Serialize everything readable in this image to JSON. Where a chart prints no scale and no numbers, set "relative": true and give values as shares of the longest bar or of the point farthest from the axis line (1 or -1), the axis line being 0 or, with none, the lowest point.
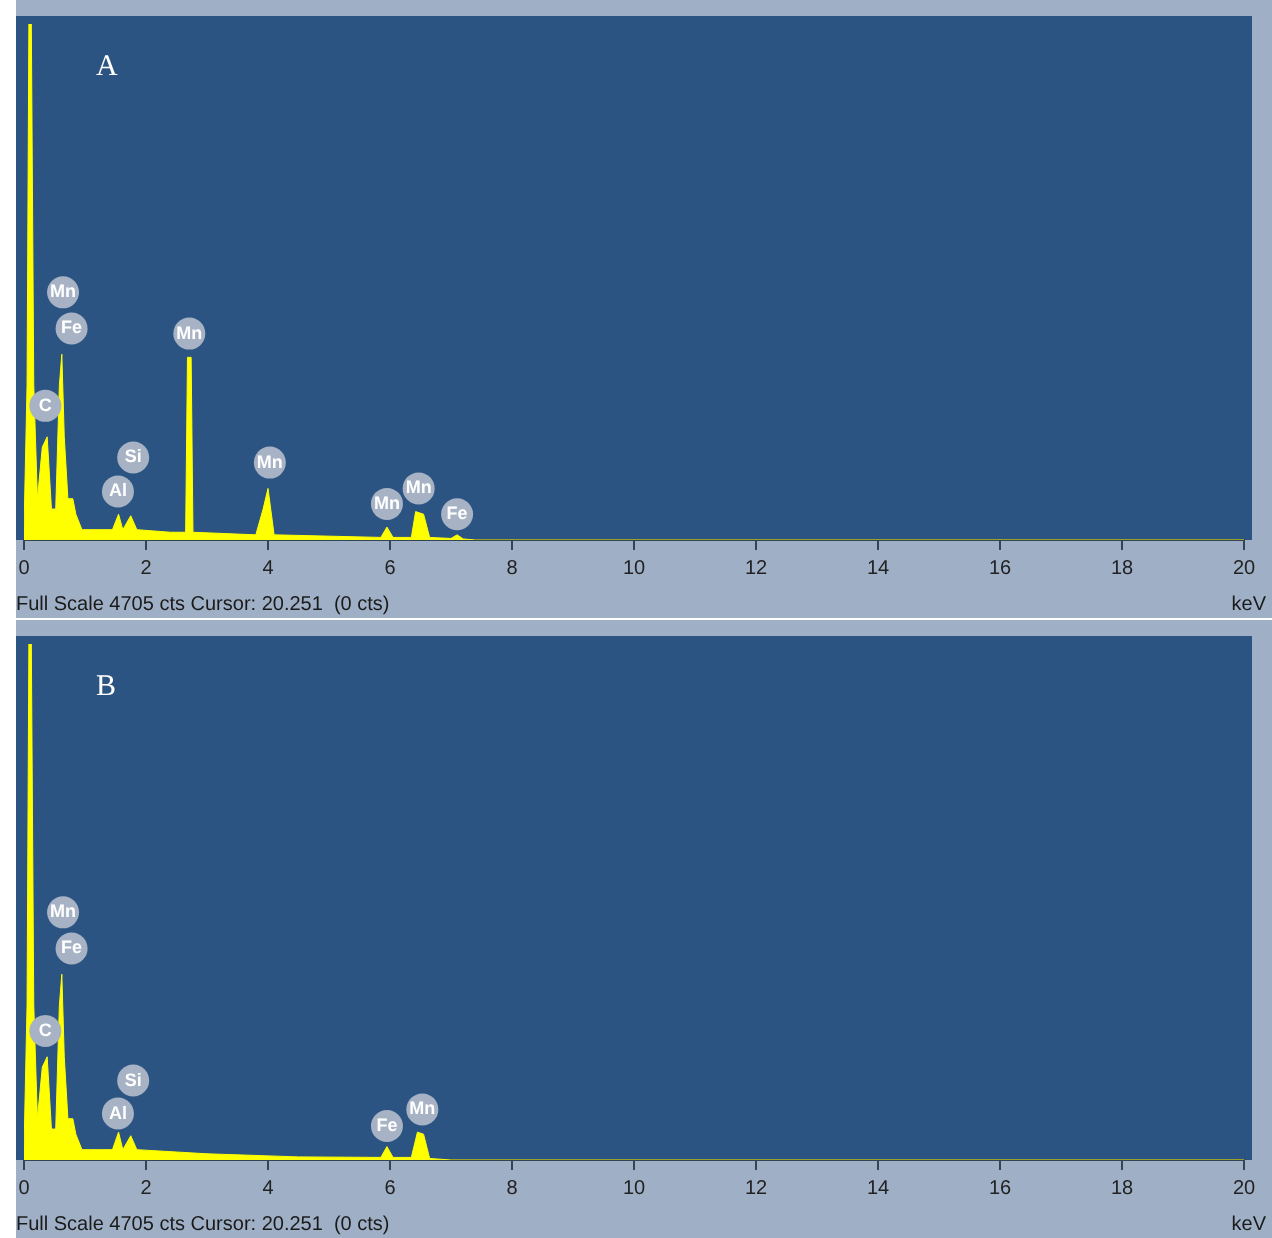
{
  "chart_data": [
    {
      "type": "area",
      "title": "A",
      "xlabel": "keV",
      "relative": true,
      "color": "#ffff00",
      "xlim": [
        0,
        20
      ],
      "xticks": [
        0,
        2,
        4,
        6,
        8,
        10,
        12,
        14,
        16,
        18,
        20
      ],
      "x": [
        0,
        0.05,
        0.08,
        0.12,
        0.16,
        0.22,
        0.3,
        0.38,
        0.45,
        0.52,
        0.58,
        0.62,
        0.66,
        0.72,
        0.8,
        0.85,
        0.95,
        1.2,
        1.45,
        1.55,
        1.62,
        1.75,
        1.85,
        2.4,
        2.65,
        2.68,
        2.74,
        2.77,
        3.8,
        3.92,
        4.0,
        4.1,
        5.85,
        5.95,
        6.05,
        6.35,
        6.42,
        6.55,
        6.65,
        7.0,
        7.1,
        7.2,
        7.4,
        20
      ],
      "values": [
        0.02,
        0.3,
        1,
        1,
        0.3,
        0.08,
        0.18,
        0.2,
        0.06,
        0.06,
        0.3,
        0.36,
        0.2,
        0.08,
        0.08,
        0.05,
        0.02,
        0.02,
        0.02,
        0.05,
        0.02,
        0.047,
        0.02,
        0.015,
        0.015,
        0.354,
        0.354,
        0.015,
        0.01,
        0.06,
        0.1,
        0.01,
        0.005,
        0.025,
        0.005,
        0.005,
        0.055,
        0.05,
        0.005,
        0.003,
        0.01,
        0.002,
        0,
        0
      ],
      "annotations": [
        {
          "text": "Mn",
          "x": 0.64,
          "y": 0.48
        },
        {
          "text": "Fe",
          "x": 0.78,
          "y": 0.41
        },
        {
          "text": "C",
          "x": 0.35,
          "y": 0.26
        },
        {
          "text": "Si",
          "x": 1.79,
          "y": 0.16
        },
        {
          "text": "Al",
          "x": 1.54,
          "y": 0.094
        },
        {
          "text": "Mn",
          "x": 2.71,
          "y": 0.4
        },
        {
          "text": "Mn",
          "x": 4.03,
          "y": 0.15
        },
        {
          "text": "Mn",
          "x": 5.95,
          "y": 0.07
        },
        {
          "text": "Mn",
          "x": 6.47,
          "y": 0.1
        },
        {
          "text": "Fe",
          "x": 7.1,
          "y": 0.05
        },
        "Full Scale 4705 cts Cursor: 20.251  (0 cts)"
      ]
    },
    {
      "type": "area",
      "title": "B",
      "xlabel": "keV",
      "relative": true,
      "color": "#ffff00",
      "xlim": [
        0,
        20
      ],
      "xticks": [
        0,
        2,
        4,
        6,
        8,
        10,
        12,
        14,
        16,
        18,
        20
      ],
      "x": [
        0,
        0.05,
        0.08,
        0.12,
        0.16,
        0.22,
        0.3,
        0.38,
        0.45,
        0.52,
        0.58,
        0.62,
        0.66,
        0.72,
        0.8,
        0.85,
        0.95,
        1.2,
        1.45,
        1.55,
        1.62,
        1.75,
        1.85,
        3,
        4.5,
        5.85,
        5.95,
        6.05,
        6.35,
        6.45,
        6.55,
        6.65,
        7,
        20
      ],
      "values": [
        0.02,
        0.3,
        1,
        1,
        0.3,
        0.08,
        0.18,
        0.2,
        0.06,
        0.06,
        0.3,
        0.36,
        0.2,
        0.08,
        0.08,
        0.05,
        0.02,
        0.02,
        0.02,
        0.054,
        0.02,
        0.047,
        0.02,
        0.012,
        0.006,
        0.005,
        0.026,
        0.005,
        0.005,
        0.054,
        0.05,
        0.003,
        0,
        0
      ],
      "annotations": [
        {
          "text": "Mn",
          "x": 0.64,
          "y": 0.48
        },
        {
          "text": "Fe",
          "x": 0.78,
          "y": 0.41
        },
        {
          "text": "C",
          "x": 0.35,
          "y": 0.25
        },
        {
          "text": "Si",
          "x": 1.79,
          "y": 0.154
        },
        {
          "text": "Al",
          "x": 1.54,
          "y": 0.09
        },
        {
          "text": "Fe",
          "x": 5.95,
          "y": 0.066
        },
        {
          "text": "Mn",
          "x": 6.53,
          "y": 0.098
        },
        "Full Scale 4705 cts Cursor: 20.251  (0 cts)"
      ]
    }
  ]
}
